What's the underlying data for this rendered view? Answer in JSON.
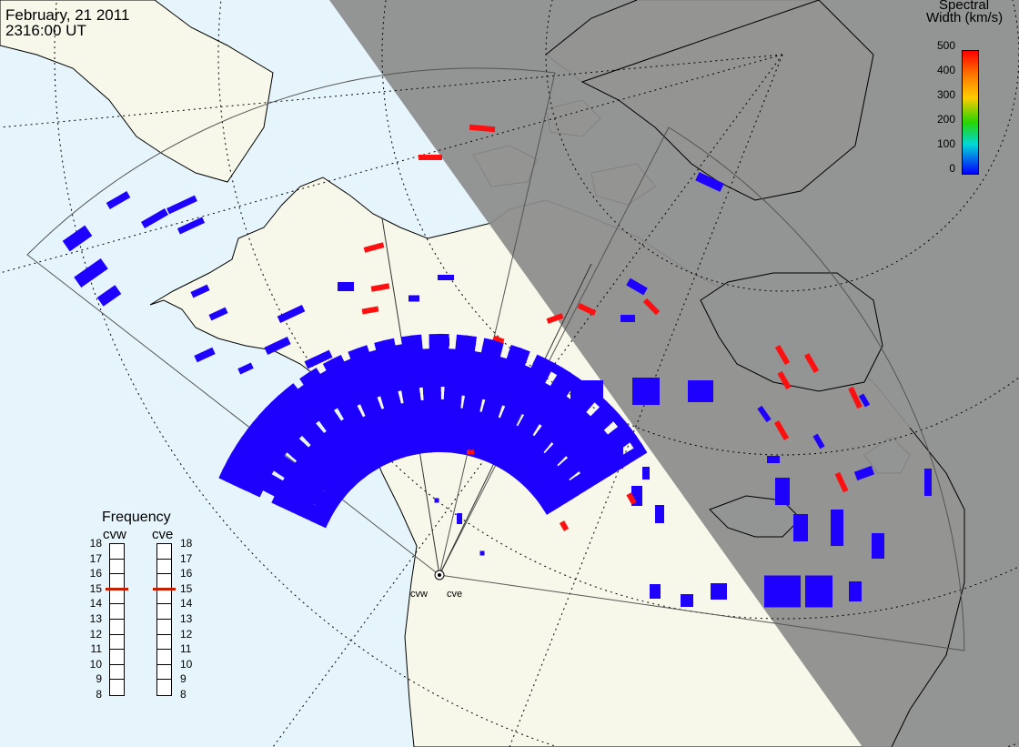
{
  "header": {
    "date": "February, 21 2011",
    "time": "2316:00 UT"
  },
  "colorbar": {
    "title_line1": "Spectral",
    "title_line2": "Width (km/s)",
    "ticks": [
      "500",
      "400",
      "300",
      "200",
      "100",
      "0"
    ],
    "range": [
      0,
      500
    ],
    "colors": [
      "#0000ff",
      "#00d8d8",
      "#28d400",
      "#ffcc00",
      "#ff7a00",
      "#ff0000"
    ]
  },
  "frequency_panel": {
    "title": "Frequency",
    "radars": [
      {
        "name": "cvw",
        "frequency": 15
      },
      {
        "name": "cve",
        "frequency": 15
      }
    ],
    "scale": [
      "18",
      "17",
      "16",
      "15",
      "14",
      "13",
      "12",
      "11",
      "10",
      "9",
      "8"
    ]
  },
  "sites": [
    {
      "label": "cvw"
    },
    {
      "label": "cve"
    }
  ],
  "map_colors": {
    "ocean": "#e6f5fc",
    "land": "#f7f7ea",
    "night": "#8c8c8c",
    "coast": "#000000",
    "scatter_low": "#1e00ff",
    "scatter_high": "#ff1010"
  }
}
